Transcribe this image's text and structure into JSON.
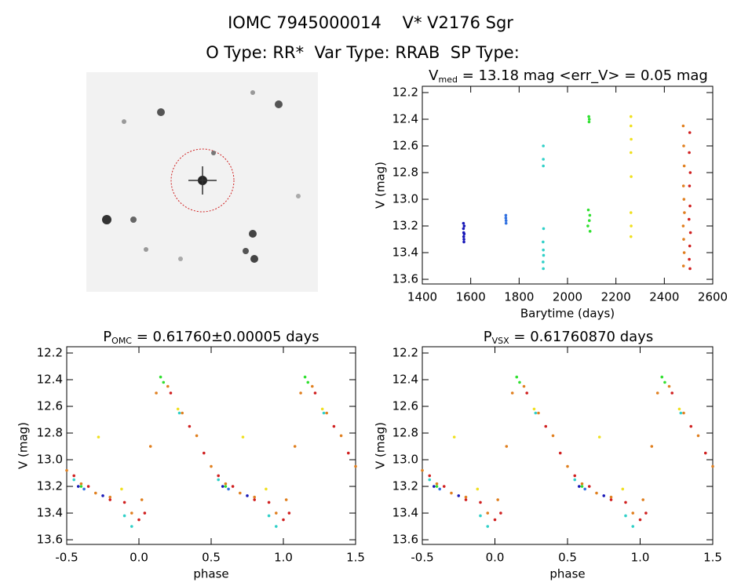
{
  "header": {
    "title": "IOMC 7945000014    V* V2176 Sgr",
    "subtitle": "O Type: RR*  Var Type: RRAB  SP Type:"
  },
  "chart_data": [
    {
      "type": "scatter",
      "title": [
        "V",
        "med",
        " = 13.18 mag <err_V> = 0.05 mag"
      ],
      "xlabel": "Barytime (days)",
      "ylabel": "V (mag)",
      "xlim": [
        1400,
        2600
      ],
      "ylim": [
        13.635,
        12.153
      ],
      "xticks": [
        1400,
        1600,
        1800,
        2000,
        2200,
        2400,
        2600
      ],
      "yticks": [
        12.2,
        12.4,
        12.6,
        12.8,
        {
          "value": 13,
          "label": "13.0"
        },
        13.2,
        13.4,
        13.6
      ],
      "series": [
        {
          "color": "#1818b8",
          "x": [
            1570,
            1570,
            1571,
            1571,
            1572,
            1572,
            1573,
            1573
          ],
          "values": [
            13.18,
            13.22,
            13.25,
            13.28,
            13.3,
            13.32,
            13.2,
            13.26
          ]
        },
        {
          "color": "#3070e0",
          "x": [
            1745,
            1745,
            1746,
            1746
          ],
          "values": [
            13.12,
            13.14,
            13.16,
            13.18
          ]
        },
        {
          "color": "#30d0c8",
          "x": [
            1900,
            1900,
            1900,
            1901,
            1899,
            1900,
            1901,
            1899,
            1900
          ],
          "values": [
            12.6,
            12.7,
            12.75,
            13.22,
            13.32,
            13.38,
            13.42,
            13.47,
            13.52
          ]
        },
        {
          "color": "#30e030",
          "x": [
            2088,
            2090,
            2089,
            2086,
            2092,
            2090,
            2084,
            2093
          ],
          "values": [
            12.38,
            12.4,
            12.42,
            13.08,
            13.12,
            13.16,
            13.2,
            13.24
          ]
        },
        {
          "color": "#f0e020",
          "x": [
            2262,
            2262,
            2263,
            2262,
            2263,
            2262,
            2263,
            2262
          ],
          "values": [
            12.38,
            12.45,
            12.55,
            12.65,
            12.83,
            13.1,
            13.2,
            13.28
          ]
        },
        {
          "color": "#e08020",
          "x": [
            2478,
            2480,
            2482,
            2479,
            2481,
            2483,
            2478,
            2480,
            2482,
            2479
          ],
          "values": [
            12.45,
            12.6,
            12.75,
            12.9,
            13.0,
            13.1,
            13.2,
            13.3,
            13.4,
            13.5
          ]
        },
        {
          "color": "#d02020",
          "x": [
            2505,
            2503,
            2507,
            2504,
            2506,
            2502,
            2508,
            2505,
            2503,
            2506
          ],
          "values": [
            12.5,
            12.65,
            12.8,
            12.9,
            13.05,
            13.15,
            13.25,
            13.35,
            13.45,
            13.52
          ]
        }
      ]
    },
    {
      "type": "scatter",
      "title": [
        "P",
        "OMC",
        " = 0.61760±0.00005 days"
      ],
      "xlabel": "phase",
      "ylabel": "V (mag)",
      "xlim": [
        -0.5,
        1.5
      ],
      "ylim": [
        13.635,
        12.153
      ],
      "xticks": [
        -0.5,
        {
          "value": 0,
          "label": "0.0"
        },
        0.5,
        {
          "value": 1,
          "label": "1.0"
        },
        1.5
      ],
      "yticks": [
        12.2,
        12.4,
        12.6,
        12.8,
        {
          "value": 13,
          "label": "13.0"
        },
        13.2,
        13.4,
        13.6
      ],
      "series": [
        {
          "color": "#30d0c8",
          "x": [
            -0.45,
            -0.1,
            -0.05,
            0.28,
            0.55,
            0.9,
            0.95,
            1.28
          ],
          "values": [
            13.15,
            13.42,
            13.5,
            12.65,
            13.15,
            13.42,
            13.5,
            12.65
          ]
        },
        {
          "color": "#30e030",
          "x": [
            0.15,
            0.17,
            1.15,
            1.17,
            -0.4,
            0.6
          ],
          "values": [
            12.38,
            12.42,
            12.38,
            12.42,
            13.2,
            13.2
          ]
        },
        {
          "color": "#f0e020",
          "x": [
            -0.28,
            0.27,
            0.72,
            1.27,
            -0.12,
            0.88
          ],
          "values": [
            12.83,
            12.62,
            12.83,
            12.62,
            13.22,
            13.22
          ]
        },
        {
          "color": "#e08020",
          "x": [
            -0.5,
            -0.4,
            -0.3,
            -0.2,
            -0.05,
            0.02,
            0.08,
            0.12,
            0.2,
            0.3,
            0.4,
            0.5,
            0.6,
            0.7,
            0.8,
            0.95,
            1.02,
            1.08,
            1.12,
            1.2,
            1.3,
            1.4,
            1.5
          ],
          "values": [
            13.08,
            13.18,
            13.25,
            13.28,
            13.4,
            13.3,
            12.9,
            12.5,
            12.45,
            12.65,
            12.82,
            13.05,
            13.18,
            13.25,
            13.28,
            13.4,
            13.3,
            12.9,
            12.5,
            12.45,
            12.65,
            12.82,
            13.05
          ]
        },
        {
          "color": "#d02020",
          "x": [
            -0.45,
            -0.35,
            -0.2,
            -0.1,
            0.0,
            0.04,
            0.22,
            0.35,
            0.45,
            0.55,
            0.65,
            0.8,
            0.9,
            1.0,
            1.04,
            1.22,
            1.35,
            1.45
          ],
          "values": [
            13.12,
            13.2,
            13.3,
            13.32,
            13.45,
            13.4,
            12.5,
            12.75,
            12.95,
            13.12,
            13.2,
            13.3,
            13.32,
            13.45,
            13.4,
            12.5,
            12.75,
            12.95
          ]
        },
        {
          "color": "#1818b8",
          "x": [
            -0.42,
            -0.25,
            0.58,
            0.75
          ],
          "values": [
            13.2,
            13.27,
            13.2,
            13.27
          ]
        },
        {
          "color": "#3070e0",
          "x": [
            -0.38,
            0.62
          ],
          "values": [
            13.22,
            13.22
          ]
        }
      ]
    },
    {
      "type": "scatter",
      "title": [
        "P",
        "VSX",
        " = 0.61760870 days"
      ],
      "xlabel": "phase",
      "ylabel": "V (mag)",
      "xlim": [
        -0.5,
        1.5
      ],
      "ylim": [
        13.635,
        12.153
      ],
      "xticks": [
        -0.5,
        {
          "value": 0,
          "label": "0.0"
        },
        0.5,
        {
          "value": 1,
          "label": "1.0"
        },
        1.5
      ],
      "yticks": [
        12.2,
        12.4,
        12.6,
        12.8,
        {
          "value": 13,
          "label": "13.0"
        },
        13.2,
        13.4,
        13.6
      ],
      "series": [
        {
          "color": "#30d0c8",
          "x": [
            -0.45,
            -0.1,
            -0.05,
            0.28,
            0.55,
            0.9,
            0.95,
            1.28
          ],
          "values": [
            13.15,
            13.42,
            13.5,
            12.65,
            13.15,
            13.42,
            13.5,
            12.65
          ]
        },
        {
          "color": "#30e030",
          "x": [
            0.15,
            0.17,
            1.15,
            1.17,
            -0.4,
            0.6
          ],
          "values": [
            12.38,
            12.42,
            12.38,
            12.42,
            13.2,
            13.2
          ]
        },
        {
          "color": "#f0e020",
          "x": [
            -0.28,
            0.27,
            0.72,
            1.27,
            -0.12,
            0.88
          ],
          "values": [
            12.83,
            12.62,
            12.83,
            12.62,
            13.22,
            13.22
          ]
        },
        {
          "color": "#e08020",
          "x": [
            -0.5,
            -0.4,
            -0.3,
            -0.2,
            -0.05,
            0.02,
            0.08,
            0.12,
            0.2,
            0.3,
            0.4,
            0.5,
            0.6,
            0.7,
            0.8,
            0.95,
            1.02,
            1.08,
            1.12,
            1.2,
            1.3,
            1.4,
            1.5
          ],
          "values": [
            13.08,
            13.18,
            13.25,
            13.28,
            13.4,
            13.3,
            12.9,
            12.5,
            12.45,
            12.65,
            12.82,
            13.05,
            13.18,
            13.25,
            13.28,
            13.4,
            13.3,
            12.9,
            12.5,
            12.45,
            12.65,
            12.82,
            13.05
          ]
        },
        {
          "color": "#d02020",
          "x": [
            -0.45,
            -0.35,
            -0.2,
            -0.1,
            0.0,
            0.04,
            0.22,
            0.35,
            0.45,
            0.55,
            0.65,
            0.8,
            0.9,
            1.0,
            1.04,
            1.22,
            1.35,
            1.45
          ],
          "values": [
            13.12,
            13.2,
            13.3,
            13.32,
            13.45,
            13.4,
            12.5,
            12.75,
            12.95,
            13.12,
            13.2,
            13.3,
            13.32,
            13.45,
            13.4,
            12.5,
            12.75,
            12.95
          ]
        },
        {
          "color": "#1818b8",
          "x": [
            -0.42,
            -0.25,
            0.58,
            0.75
          ],
          "values": [
            13.2,
            13.27,
            13.2,
            13.27
          ]
        },
        {
          "color": "#3070e0",
          "x": [
            -0.38,
            0.62
          ],
          "values": [
            13.22,
            13.22
          ]
        }
      ]
    }
  ]
}
